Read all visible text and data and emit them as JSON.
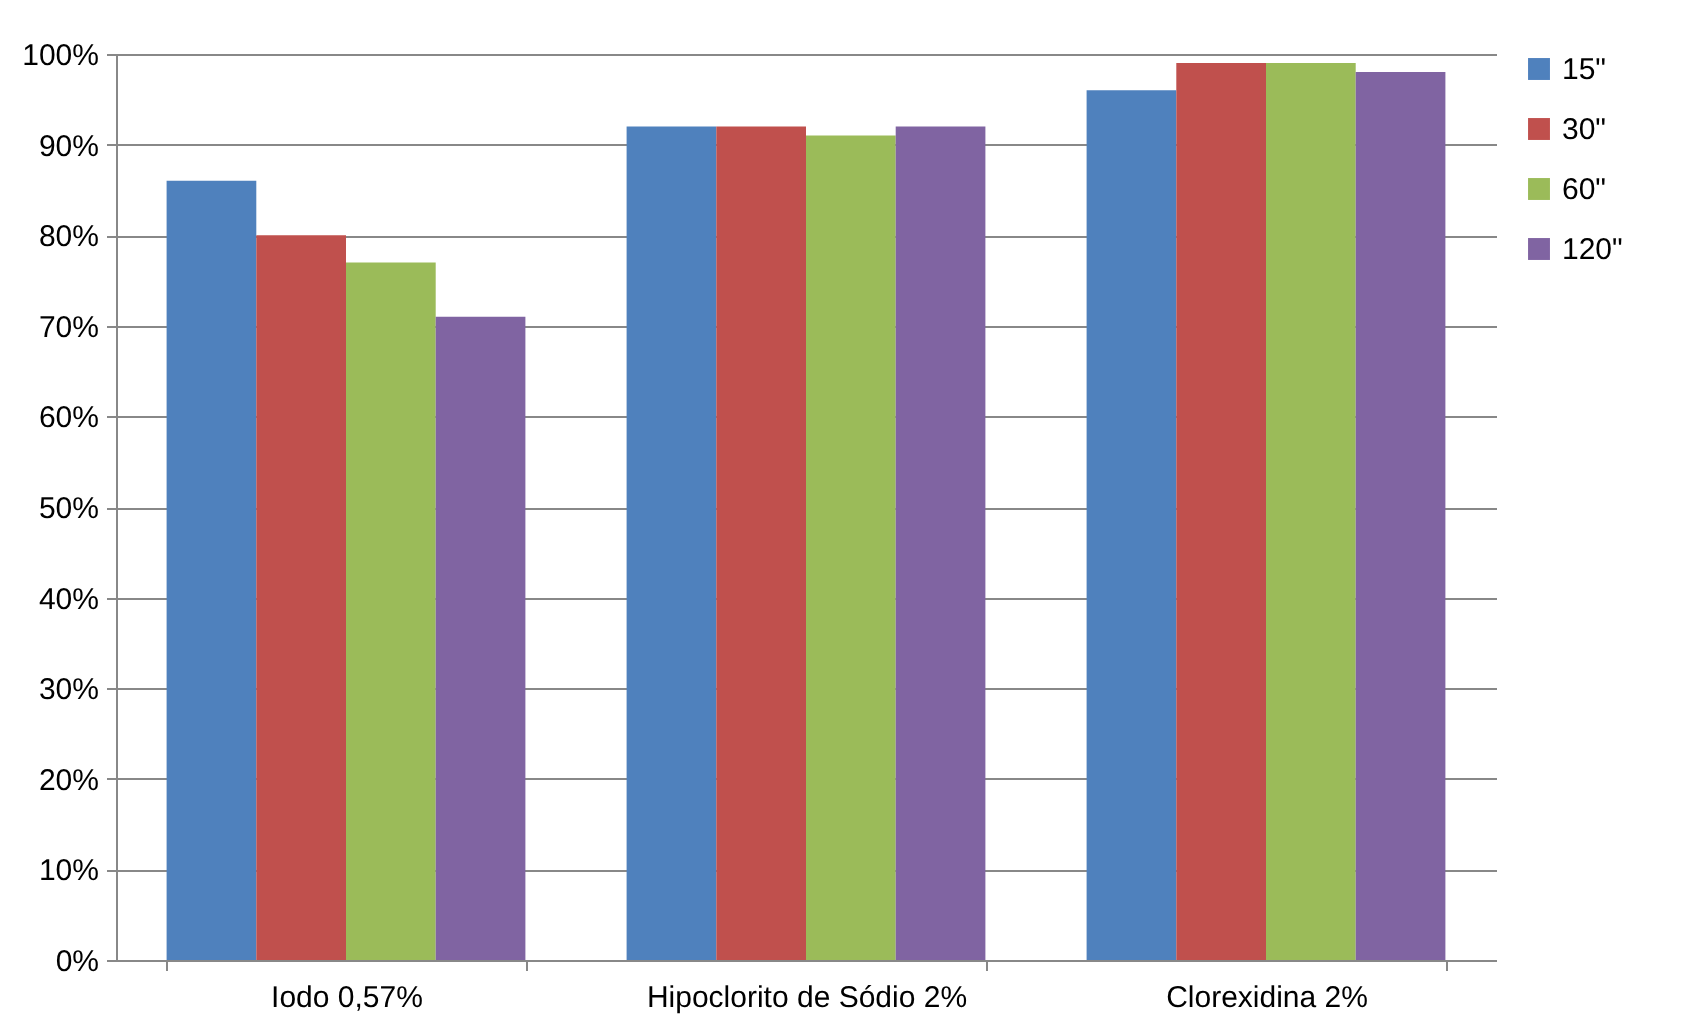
{
  "chart_data": {
    "type": "bar",
    "categories": [
      "Iodo 0,57%",
      "Hipoclorito de Sódio 2%",
      "Clorexidina 2%"
    ],
    "series": [
      {
        "name": "15\"",
        "color": "#4f81bd",
        "values": [
          86,
          92,
          96
        ]
      },
      {
        "name": "30\"",
        "color": "#c0504d",
        "values": [
          80,
          92,
          99
        ]
      },
      {
        "name": "60\"",
        "color": "#9bbb59",
        "values": [
          77,
          91,
          99
        ]
      },
      {
        "name": "120\"",
        "color": "#8064a2",
        "values": [
          71,
          92,
          98
        ]
      }
    ],
    "ylim": [
      0,
      100
    ],
    "yticks": [
      {
        "value": 0,
        "label": "0%"
      },
      {
        "value": 10,
        "label": "10%"
      },
      {
        "value": 20,
        "label": "20%"
      },
      {
        "value": 30,
        "label": "30%"
      },
      {
        "value": 40,
        "label": "40%"
      },
      {
        "value": 50,
        "label": "50%"
      },
      {
        "value": 60,
        "label": "60%"
      },
      {
        "value": 70,
        "label": "70%"
      },
      {
        "value": 80,
        "label": "80%"
      },
      {
        "value": 90,
        "label": "90%"
      },
      {
        "value": 100,
        "label": "100%"
      }
    ],
    "grid": "y",
    "legend": "right"
  }
}
